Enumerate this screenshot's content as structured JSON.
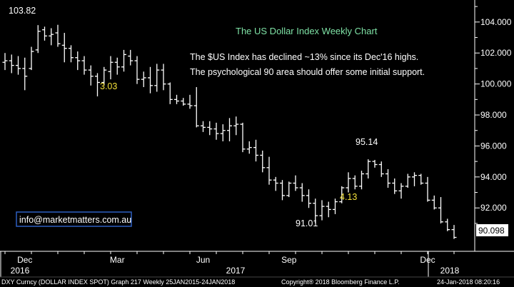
{
  "chart_data": {
    "type": "ohlc",
    "title": "The US Dollar Index Weekly Chart",
    "notes": [
      "The $US Index has declined ~13% since its Dec'16 highs.",
      "The psychological 90 area should offer some initial support."
    ],
    "ylim": [
      89.2,
      104.8
    ],
    "yticks": [
      "104.000",
      "102.000",
      "100.000",
      "98.000",
      "96.000",
      "94.000",
      "92.000"
    ],
    "month_labels": [
      "Dec",
      "Mar",
      "Jun",
      "Sep",
      "Dec"
    ],
    "year_labels": [
      "2016",
      "2017",
      "2018"
    ],
    "last_value": "90.098",
    "annotations": [
      {
        "text": "103.82",
        "color": "white"
      },
      {
        "text": "3.03",
        "color": "yellow"
      },
      {
        "text": "95.14",
        "color": "white"
      },
      {
        "text": "91.01",
        "color": "white"
      },
      {
        "text": "4.13",
        "color": "yellow"
      }
    ],
    "email": "info@marketmatters.com.au",
    "footer_left": "DXY Curncy (DOLLAR INDEX SPOT) Graph 217  Weekly 25JAN2015-24JAN2018",
    "footer_mid": "Copyright® 2018 Bloomberg Finance L.P.",
    "footer_right": "24-Jan-2018 08:20:16",
    "colors": {
      "bars": "#ffffff",
      "title": "#7fe3a6",
      "yellow_ann": "#f4e13a",
      "email_box": "#2d5fc0"
    },
    "weeks": [
      [
        101.4,
        102.0,
        100.9,
        101.5
      ],
      [
        101.5,
        101.9,
        100.7,
        101.2
      ],
      [
        101.2,
        101.8,
        100.6,
        101.0
      ],
      [
        101.0,
        101.7,
        99.6,
        100.5
      ],
      [
        101.0,
        102.4,
        100.9,
        102.1
      ],
      [
        102.2,
        103.8,
        102.0,
        103.4
      ],
      [
        103.5,
        103.7,
        102.8,
        103.1
      ],
      [
        103.1,
        103.6,
        102.5,
        103.2
      ],
      [
        103.3,
        103.82,
        102.4,
        102.6
      ],
      [
        102.5,
        103.3,
        101.4,
        102.3
      ],
      [
        102.3,
        102.5,
        101.4,
        101.7
      ],
      [
        101.7,
        102.1,
        100.9,
        101.5
      ],
      [
        101.5,
        101.8,
        100.6,
        100.9
      ],
      [
        100.9,
        101.2,
        99.9,
        100.5
      ],
      [
        100.5,
        100.7,
        99.2,
        100.1
      ],
      [
        100.1,
        101.1,
        99.9,
        100.9
      ],
      [
        100.8,
        101.8,
        100.3,
        101.4
      ],
      [
        101.4,
        101.7,
        100.6,
        101.1
      ],
      [
        101.1,
        102.2,
        100.8,
        101.9
      ],
      [
        101.8,
        102.2,
        101.2,
        101.5
      ],
      [
        101.5,
        101.8,
        100.0,
        100.3
      ],
      [
        100.3,
        100.8,
        99.8,
        100.4
      ],
      [
        100.4,
        101.1,
        99.4,
        99.9
      ],
      [
        99.9,
        101.3,
        99.5,
        100.9
      ],
      [
        100.9,
        101.3,
        99.6,
        100.0
      ],
      [
        100.0,
        100.1,
        98.7,
        99.0
      ],
      [
        99.0,
        99.3,
        98.7,
        98.9
      ],
      [
        98.9,
        99.1,
        98.6,
        98.7
      ],
      [
        98.7,
        99.3,
        98.4,
        98.6
      ],
      [
        98.6,
        99.8,
        97.2,
        97.3
      ],
      [
        97.3,
        97.6,
        96.9,
        97.2
      ],
      [
        97.2,
        97.6,
        96.7,
        97.1
      ],
      [
        97.1,
        97.5,
        96.4,
        96.8
      ],
      [
        96.8,
        97.4,
        96.3,
        97.0
      ],
      [
        97.0,
        97.8,
        96.3,
        97.3
      ],
      [
        97.3,
        97.9,
        96.7,
        97.4
      ],
      [
        97.4,
        97.5,
        95.6,
        95.8
      ],
      [
        95.8,
        96.3,
        95.5,
        95.9
      ],
      [
        95.9,
        96.4,
        95.0,
        95.4
      ],
      [
        95.4,
        95.7,
        94.3,
        94.6
      ],
      [
        94.6,
        95.3,
        93.5,
        93.8
      ],
      [
        93.8,
        94.0,
        93.1,
        93.6
      ],
      [
        93.6,
        93.8,
        92.5,
        92.8
      ],
      [
        92.8,
        93.7,
        92.7,
        93.6
      ],
      [
        93.6,
        94.1,
        93.1,
        93.3
      ],
      [
        93.3,
        93.6,
        92.4,
        92.8
      ],
      [
        92.8,
        93.2,
        92.0,
        92.3
      ],
      [
        92.3,
        92.6,
        91.01,
        91.5
      ],
      [
        91.5,
        92.5,
        91.2,
        92.1
      ],
      [
        92.1,
        92.4,
        91.4,
        91.9
      ],
      [
        91.9,
        92.6,
        91.6,
        92.4
      ],
      [
        92.4,
        93.4,
        92.3,
        93.3
      ],
      [
        93.3,
        94.3,
        93.0,
        93.9
      ],
      [
        93.9,
        94.1,
        93.2,
        93.4
      ],
      [
        93.4,
        94.4,
        93.2,
        94.2
      ],
      [
        94.2,
        95.14,
        93.9,
        95.0
      ],
      [
        95.0,
        95.1,
        94.6,
        94.8
      ],
      [
        94.8,
        95.0,
        94.0,
        94.2
      ],
      [
        94.2,
        94.5,
        93.3,
        93.6
      ],
      [
        93.6,
        93.9,
        92.9,
        93.1
      ],
      [
        93.1,
        93.6,
        92.6,
        93.4
      ],
      [
        93.4,
        94.2,
        93.3,
        94.0
      ],
      [
        94.0,
        94.3,
        93.4,
        94.1
      ],
      [
        94.1,
        94.2,
        93.5,
        93.6
      ],
      [
        93.6,
        94.0,
        92.4,
        92.5
      ],
      [
        92.5,
        92.8,
        91.9,
        92.0
      ],
      [
        92.0,
        92.7,
        91.0,
        91.1
      ],
      [
        91.1,
        91.3,
        90.5,
        90.6
      ],
      [
        90.6,
        90.9,
        90.0,
        90.098
      ]
    ]
  }
}
